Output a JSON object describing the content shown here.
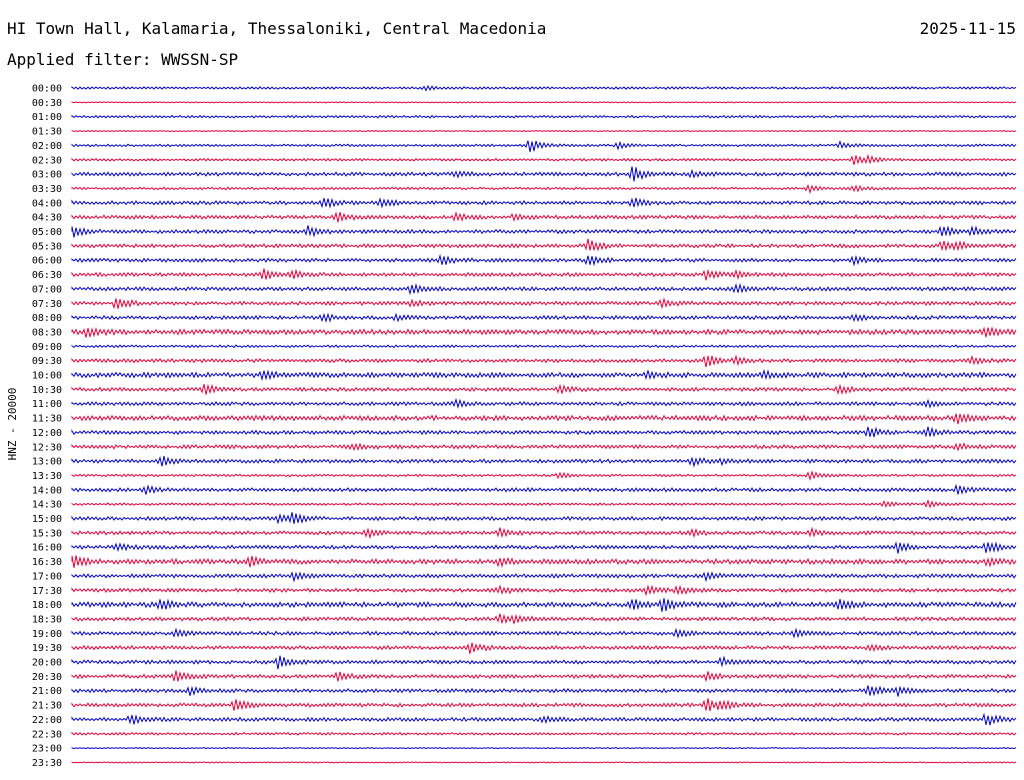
{
  "header": {
    "station": "HI Town Hall, Kalamaria, Thessaloniki, Central Macedonia",
    "date": "2025-11-15",
    "filter": "Applied filter: WWSSN-SP"
  },
  "chart_data": {
    "type": "line",
    "title": "HI Town Hall, Kalamaria, Thessaloniki, Central Macedonia",
    "ylabel": "HNZ - 20000",
    "xlabel": "",
    "colors": [
      "#0000cc",
      "#e8003a"
    ],
    "rows": [
      {
        "time": "00:00",
        "activity": 1,
        "events": [
          [
            12.0,
            2
          ]
        ]
      },
      {
        "time": "00:30",
        "activity": 0,
        "events": []
      },
      {
        "time": "01:00",
        "activity": 1,
        "events": []
      },
      {
        "time": "01:30",
        "activity": 0,
        "events": []
      },
      {
        "time": "02:00",
        "activity": 1,
        "events": [
          [
            15.5,
            8
          ],
          [
            18.5,
            3
          ],
          [
            26.0,
            3
          ]
        ]
      },
      {
        "time": "02:30",
        "activity": 1,
        "events": [
          [
            26.5,
            6
          ],
          [
            27.0,
            3
          ]
        ]
      },
      {
        "time": "03:00",
        "activity": 2,
        "events": [
          [
            13.0,
            3
          ],
          [
            19.0,
            8
          ],
          [
            21.0,
            3
          ]
        ]
      },
      {
        "time": "03:30",
        "activity": 1,
        "events": [
          [
            25.0,
            4
          ],
          [
            26.5,
            3
          ]
        ]
      },
      {
        "time": "04:00",
        "activity": 2,
        "events": [
          [
            8.5,
            6
          ],
          [
            10.5,
            4
          ],
          [
            19.0,
            5
          ]
        ]
      },
      {
        "time": "04:30",
        "activity": 2,
        "events": [
          [
            9.0,
            5
          ],
          [
            13.0,
            4
          ],
          [
            15.0,
            3
          ]
        ]
      },
      {
        "time": "05:00",
        "activity": 2,
        "events": [
          [
            0.0,
            6
          ],
          [
            8.0,
            5
          ],
          [
            29.5,
            6
          ],
          [
            30.5,
            4
          ]
        ]
      },
      {
        "time": "05:30",
        "activity": 2,
        "events": [
          [
            17.5,
            7
          ],
          [
            29.5,
            5
          ],
          [
            30.0,
            4
          ]
        ]
      },
      {
        "time": "06:00",
        "activity": 2,
        "events": [
          [
            12.5,
            5
          ],
          [
            17.5,
            5
          ],
          [
            26.5,
            4
          ]
        ]
      },
      {
        "time": "06:30",
        "activity": 2,
        "events": [
          [
            6.5,
            6
          ],
          [
            7.5,
            4
          ],
          [
            21.5,
            5
          ],
          [
            22.5,
            3
          ]
        ]
      },
      {
        "time": "07:00",
        "activity": 2,
        "events": [
          [
            11.5,
            5
          ],
          [
            22.5,
            4
          ]
        ]
      },
      {
        "time": "07:30",
        "activity": 2,
        "events": [
          [
            1.5,
            6
          ],
          [
            11.5,
            3
          ],
          [
            20.0,
            4
          ]
        ]
      },
      {
        "time": "08:00",
        "activity": 2,
        "events": [
          [
            8.5,
            4
          ],
          [
            11.0,
            3
          ],
          [
            26.5,
            3
          ]
        ]
      },
      {
        "time": "08:30",
        "activity": 3,
        "events": [
          [
            0.5,
            5
          ],
          [
            31.0,
            5
          ]
        ]
      },
      {
        "time": "09:00",
        "activity": 1,
        "events": []
      },
      {
        "time": "09:30",
        "activity": 2,
        "events": [
          [
            21.5,
            6
          ],
          [
            22.5,
            3
          ],
          [
            30.5,
            3
          ]
        ]
      },
      {
        "time": "10:00",
        "activity": 3,
        "events": [
          [
            6.5,
            4
          ],
          [
            19.5,
            3
          ],
          [
            23.5,
            3
          ]
        ]
      },
      {
        "time": "10:30",
        "activity": 2,
        "events": [
          [
            4.5,
            5
          ],
          [
            16.5,
            4
          ],
          [
            26.0,
            4
          ]
        ]
      },
      {
        "time": "11:00",
        "activity": 2,
        "events": [
          [
            13.0,
            3
          ],
          [
            29.0,
            3
          ]
        ]
      },
      {
        "time": "11:30",
        "activity": 3,
        "events": [
          [
            30.0,
            5
          ]
        ]
      },
      {
        "time": "12:00",
        "activity": 2,
        "events": [
          [
            27.0,
            6
          ],
          [
            29.0,
            5
          ]
        ]
      },
      {
        "time": "12:30",
        "activity": 2,
        "events": [
          [
            9.5,
            3
          ],
          [
            30.0,
            3
          ]
        ]
      },
      {
        "time": "13:00",
        "activity": 2,
        "events": [
          [
            3.0,
            5
          ],
          [
            21.0,
            4
          ],
          [
            22.0,
            3
          ]
        ]
      },
      {
        "time": "13:30",
        "activity": 1,
        "events": [
          [
            16.5,
            3
          ],
          [
            25.0,
            4
          ]
        ]
      },
      {
        "time": "14:00",
        "activity": 2,
        "events": [
          [
            2.5,
            4
          ],
          [
            30.0,
            4
          ]
        ]
      },
      {
        "time": "14:30",
        "activity": 1,
        "events": [
          [
            27.5,
            3
          ],
          [
            29.0,
            3
          ]
        ]
      },
      {
        "time": "15:00",
        "activity": 2,
        "events": [
          [
            7.5,
            6
          ],
          [
            7.0,
            3
          ]
        ]
      },
      {
        "time": "15:30",
        "activity": 2,
        "events": [
          [
            10.0,
            4
          ],
          [
            14.5,
            4
          ],
          [
            21.0,
            3
          ],
          [
            25.0,
            4
          ]
        ]
      },
      {
        "time": "16:00",
        "activity": 2,
        "events": [
          [
            1.5,
            3
          ],
          [
            28.0,
            6
          ],
          [
            31.0,
            7
          ]
        ]
      },
      {
        "time": "16:30",
        "activity": 3,
        "events": [
          [
            0.0,
            7
          ],
          [
            6.0,
            5
          ],
          [
            14.5,
            4
          ],
          [
            31.0,
            4
          ]
        ]
      },
      {
        "time": "17:00",
        "activity": 2,
        "events": [
          [
            7.5,
            4
          ],
          [
            21.5,
            4
          ]
        ]
      },
      {
        "time": "17:30",
        "activity": 2,
        "events": [
          [
            14.5,
            4
          ],
          [
            19.5,
            4
          ],
          [
            20.5,
            4
          ]
        ]
      },
      {
        "time": "18:00",
        "activity": 3,
        "events": [
          [
            3.0,
            5
          ],
          [
            19.0,
            5
          ],
          [
            20.0,
            7
          ],
          [
            26.0,
            5
          ]
        ]
      },
      {
        "time": "18:30",
        "activity": 2,
        "events": [
          [
            14.5,
            5
          ],
          [
            15.0,
            3
          ]
        ]
      },
      {
        "time": "19:00",
        "activity": 2,
        "events": [
          [
            3.5,
            3
          ],
          [
            20.5,
            4
          ],
          [
            24.5,
            4
          ]
        ]
      },
      {
        "time": "19:30",
        "activity": 2,
        "events": [
          [
            13.5,
            6
          ],
          [
            27.0,
            3
          ]
        ]
      },
      {
        "time": "20:00",
        "activity": 2,
        "events": [
          [
            7.0,
            7
          ],
          [
            22.0,
            4
          ]
        ]
      },
      {
        "time": "20:30",
        "activity": 2,
        "events": [
          [
            3.5,
            6
          ],
          [
            9.0,
            4
          ],
          [
            21.5,
            4
          ]
        ]
      },
      {
        "time": "21:00",
        "activity": 2,
        "events": [
          [
            4.0,
            4
          ],
          [
            27.0,
            6
          ],
          [
            28.0,
            4
          ]
        ]
      },
      {
        "time": "21:30",
        "activity": 2,
        "events": [
          [
            5.5,
            6
          ],
          [
            21.5,
            7
          ],
          [
            22.0,
            4
          ]
        ]
      },
      {
        "time": "22:00",
        "activity": 2,
        "events": [
          [
            2.0,
            5
          ],
          [
            16.0,
            3
          ],
          [
            31.0,
            7
          ]
        ]
      },
      {
        "time": "22:30",
        "activity": 1,
        "events": []
      },
      {
        "time": "23:00",
        "activity": 0,
        "events": []
      },
      {
        "time": "23:30",
        "activity": 0,
        "events": []
      }
    ]
  }
}
